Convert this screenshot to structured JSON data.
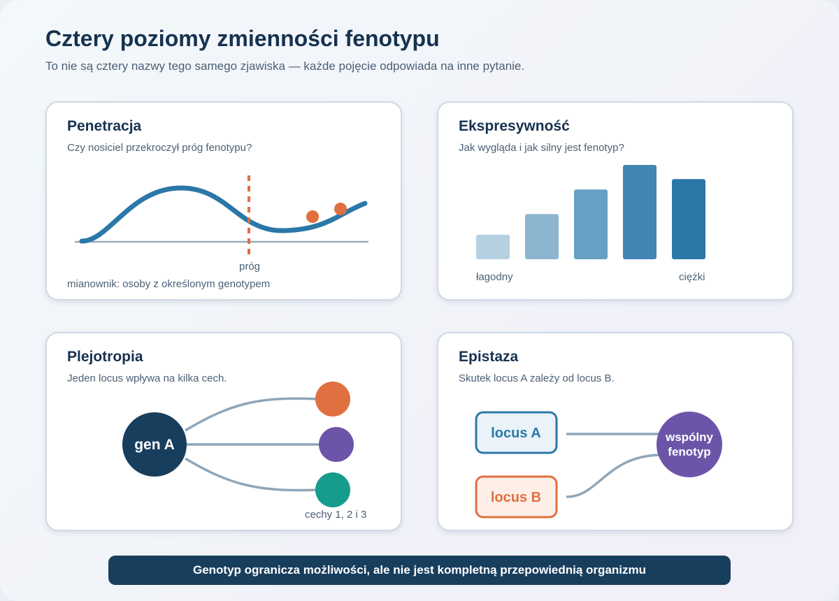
{
  "header": {
    "title": "Cztery poziomy zmienności fenotypu",
    "subtitle": "To nie są cztery nazwy tego samego zjawiska — każde pojęcie odpowiada na inne pytanie."
  },
  "penetrance": {
    "title": "Penetracja",
    "question": "Czy nosiciel przekroczył próg fenotypu?",
    "threshold_label": "próg",
    "denominator": "mianownik: osoby z określonym genotypem",
    "colors": {
      "curve": "#2b78a8",
      "threshold": "#e07040",
      "baseline": "#9aabbd"
    }
  },
  "expressivity": {
    "title": "Ekspresywność",
    "question": "Jak wygląda i jak silny jest fenotyp?",
    "label_mild": "łagodny",
    "label_severe": "ciężki",
    "bar_levels": [
      0.26,
      0.48,
      0.74,
      1.0,
      0.85
    ],
    "bar_colors": [
      "#b5d0e1",
      "#8cb6cf",
      "#66a1c4",
      "#4286b3",
      "#2b78a8"
    ]
  },
  "pleiotropy": {
    "title": "Plejotropia",
    "question": "Jeden locus wpływa na kilka cech.",
    "gene_label": "gen A",
    "traits_label": "cechy 1, 2 i 3",
    "colors": {
      "gene": "#183e5e",
      "trait1": "#e07040",
      "trait2": "#6c55a8",
      "trait3": "#159c8c",
      "link": "#8fa6b8"
    }
  },
  "epistasis": {
    "title": "Epistaza",
    "question": "Skutek locus A zależy od locus B.",
    "locus_a": "locus A",
    "locus_b": "locus B",
    "phenotype_line1": "wspólny",
    "phenotype_line2": "fenotyp",
    "colors": {
      "locus_a": "#2b78a8",
      "locus_b": "#e07040",
      "phenotype": "#6c55a8",
      "link": "#8fa6b8"
    }
  },
  "footer": {
    "text": "Genotyp ogranicza możliwości, ale nie jest kompletną przepowiednią organizmu"
  }
}
